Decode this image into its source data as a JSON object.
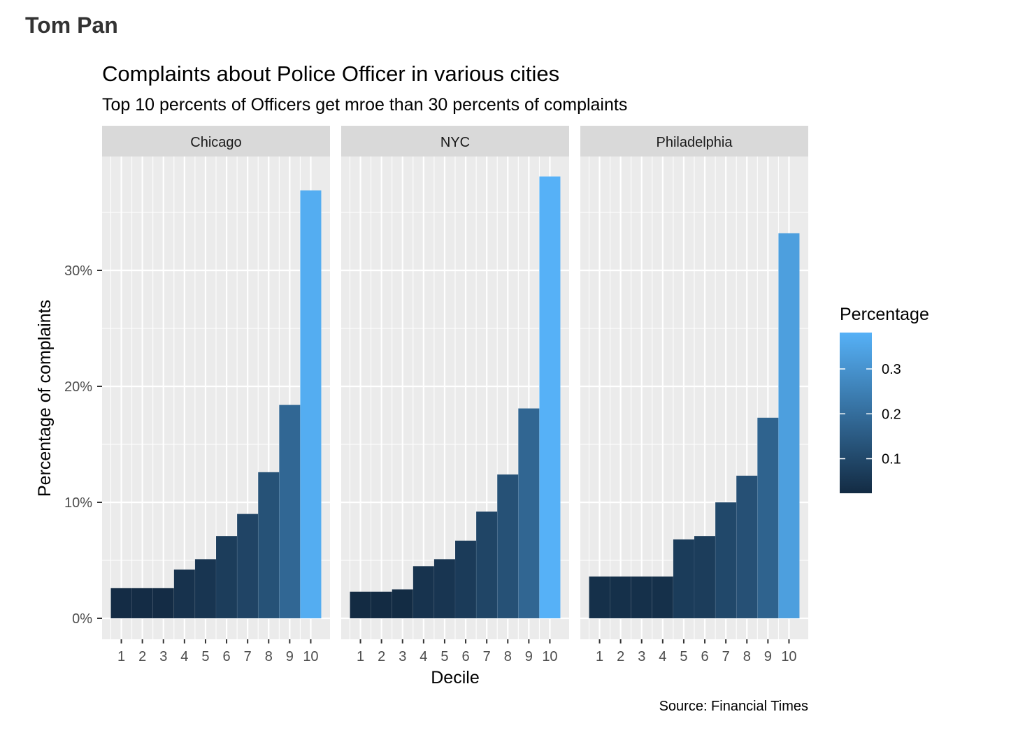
{
  "header": {
    "author": "Tom Pan"
  },
  "chart_data": {
    "type": "bar",
    "title": "Complaints about Police Officer in various cities",
    "subtitle": "Top 10 percents of Officers get mroe than 30 percents of complaints",
    "xlabel": "Decile",
    "ylabel": "Percentage of complaints",
    "caption": "Source: Financial Times",
    "categories": [
      "1",
      "2",
      "3",
      "4",
      "5",
      "6",
      "7",
      "8",
      "9",
      "10"
    ],
    "ylim": [
      -0.018,
      0.399
    ],
    "y_ticks": [
      0,
      0.1,
      0.2,
      0.3
    ],
    "y_tick_labels": [
      "0%",
      "10%",
      "20%",
      "30%"
    ],
    "grid": true,
    "panels": [
      {
        "name": "Chicago",
        "values": [
          0.026,
          0.026,
          0.026,
          0.042,
          0.051,
          0.071,
          0.09,
          0.126,
          0.184,
          0.369
        ]
      },
      {
        "name": "NYC",
        "values": [
          0.023,
          0.023,
          0.025,
          0.045,
          0.051,
          0.067,
          0.092,
          0.124,
          0.181,
          0.381
        ]
      },
      {
        "name": "Philadelphia",
        "values": [
          0.036,
          0.036,
          0.036,
          0.036,
          0.068,
          0.071,
          0.1,
          0.123,
          0.173,
          0.332
        ]
      }
    ],
    "legend": {
      "title": "Percentage",
      "position": "right",
      "ticks": [
        0.1,
        0.2,
        0.3
      ],
      "tick_labels": [
        "0.1",
        "0.2",
        "0.3"
      ],
      "range": [
        0.023,
        0.381
      ],
      "low_color": "#132B43",
      "high_color": "#56B1F7"
    },
    "colors": {
      "panel_background": "#EBEBEB",
      "gridline": "#FFFFFF",
      "strip_background": "#D9D9D9"
    }
  }
}
